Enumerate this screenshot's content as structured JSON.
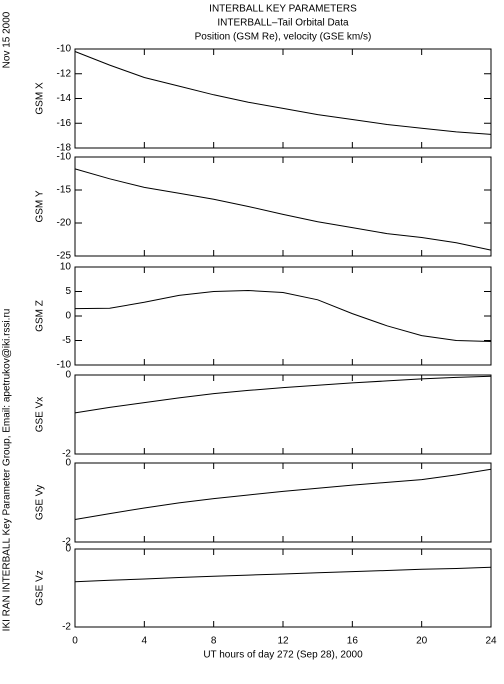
{
  "header": {
    "lines": [
      "INTERBALL KEY PARAMETERS",
      "INTERBALL–Tail Orbital Data",
      "Position (GSM Re), velocity (GSE km/s)"
    ]
  },
  "date_label": "Nov 15 2000",
  "side_label": "IKI RAN INTERBALL Key Parameter Group, Email: apetrukov@iki.rssi.ru",
  "chart_data": [
    {
      "type": "line",
      "ylabel": "GSM X",
      "x": [
        0,
        2,
        4,
        6,
        8,
        10,
        12,
        14,
        16,
        18,
        20,
        22,
        24
      ],
      "values": [
        -10.2,
        -11.3,
        -12.3,
        -13.0,
        -13.7,
        -14.3,
        -14.8,
        -15.3,
        -15.7,
        -16.1,
        -16.4,
        -16.7,
        -16.9
      ],
      "xlim": [
        0,
        24
      ],
      "xticks": [
        0,
        4,
        8,
        12,
        16,
        20,
        24
      ],
      "ylim": [
        -18,
        -10
      ],
      "yticks": [
        -18,
        -16,
        -14,
        -12,
        -10
      ],
      "color": "#000000"
    },
    {
      "type": "line",
      "ylabel": "GSM Y",
      "x": [
        0,
        2,
        4,
        6,
        8,
        10,
        12,
        14,
        16,
        18,
        20,
        22,
        24
      ],
      "values": [
        -11.8,
        -13.3,
        -14.6,
        -15.5,
        -16.4,
        -17.5,
        -18.7,
        -19.8,
        -20.7,
        -21.6,
        -22.2,
        -23.0,
        -24.1
      ],
      "xlim": [
        0,
        24
      ],
      "xticks": [
        0,
        4,
        8,
        12,
        16,
        20,
        24
      ],
      "ylim": [
        -25,
        -10
      ],
      "yticks": [
        -25,
        -20,
        -15,
        -10
      ],
      "color": "#000000"
    },
    {
      "type": "line",
      "ylabel": "GSM Z",
      "x": [
        0,
        2,
        4,
        6,
        8,
        10,
        12,
        14,
        16,
        18,
        20,
        22,
        24
      ],
      "values": [
        1.5,
        1.6,
        2.8,
        4.2,
        5.0,
        5.2,
        4.8,
        3.3,
        0.5,
        -2.0,
        -4.0,
        -5.0,
        -5.2
      ],
      "xlim": [
        0,
        24
      ],
      "xticks": [
        0,
        4,
        8,
        12,
        16,
        20,
        24
      ],
      "ylim": [
        -10,
        10
      ],
      "yticks": [
        -10,
        -5,
        0,
        5,
        10
      ],
      "color": "#000000"
    },
    {
      "type": "line",
      "ylabel": "GSE Vx",
      "x": [
        0,
        2,
        4,
        6,
        8,
        10,
        12,
        14,
        16,
        18,
        20,
        22,
        24
      ],
      "values": [
        -0.96,
        -0.82,
        -0.7,
        -0.58,
        -0.47,
        -0.39,
        -0.32,
        -0.26,
        -0.2,
        -0.15,
        -0.1,
        -0.06,
        -0.03
      ],
      "xlim": [
        0,
        24
      ],
      "xticks": [
        0,
        4,
        8,
        12,
        16,
        20,
        24
      ],
      "ylim": [
        -2,
        0
      ],
      "yticks": [
        -2,
        0
      ],
      "color": "#000000"
    },
    {
      "type": "line",
      "ylabel": "GSE Vy",
      "x": [
        0,
        2,
        4,
        6,
        8,
        10,
        12,
        14,
        16,
        18,
        20,
        22,
        24
      ],
      "values": [
        -1.43,
        -1.28,
        -1.14,
        -1.01,
        -0.9,
        -0.81,
        -0.72,
        -0.64,
        -0.56,
        -0.49,
        -0.42,
        -0.3,
        -0.16
      ],
      "xlim": [
        0,
        24
      ],
      "xticks": [
        0,
        4,
        8,
        12,
        16,
        20,
        24
      ],
      "ylim": [
        -2,
        0
      ],
      "yticks": [
        -2,
        0
      ],
      "color": "#000000"
    },
    {
      "type": "line",
      "ylabel": "GSE Vz",
      "x": [
        0,
        2,
        4,
        6,
        8,
        10,
        12,
        14,
        16,
        18,
        20,
        22,
        24
      ],
      "values": [
        -0.84,
        -0.8,
        -0.77,
        -0.73,
        -0.7,
        -0.67,
        -0.64,
        -0.61,
        -0.58,
        -0.55,
        -0.52,
        -0.5,
        -0.47
      ],
      "xlim": [
        0,
        24
      ],
      "xticks": [
        0,
        4,
        8,
        12,
        16,
        20,
        24
      ],
      "ylim": [
        -2,
        0
      ],
      "yticks": [
        -2,
        0
      ],
      "color": "#000000",
      "xlabel": "UT hours of day 272 (Sep 28), 2000"
    }
  ]
}
